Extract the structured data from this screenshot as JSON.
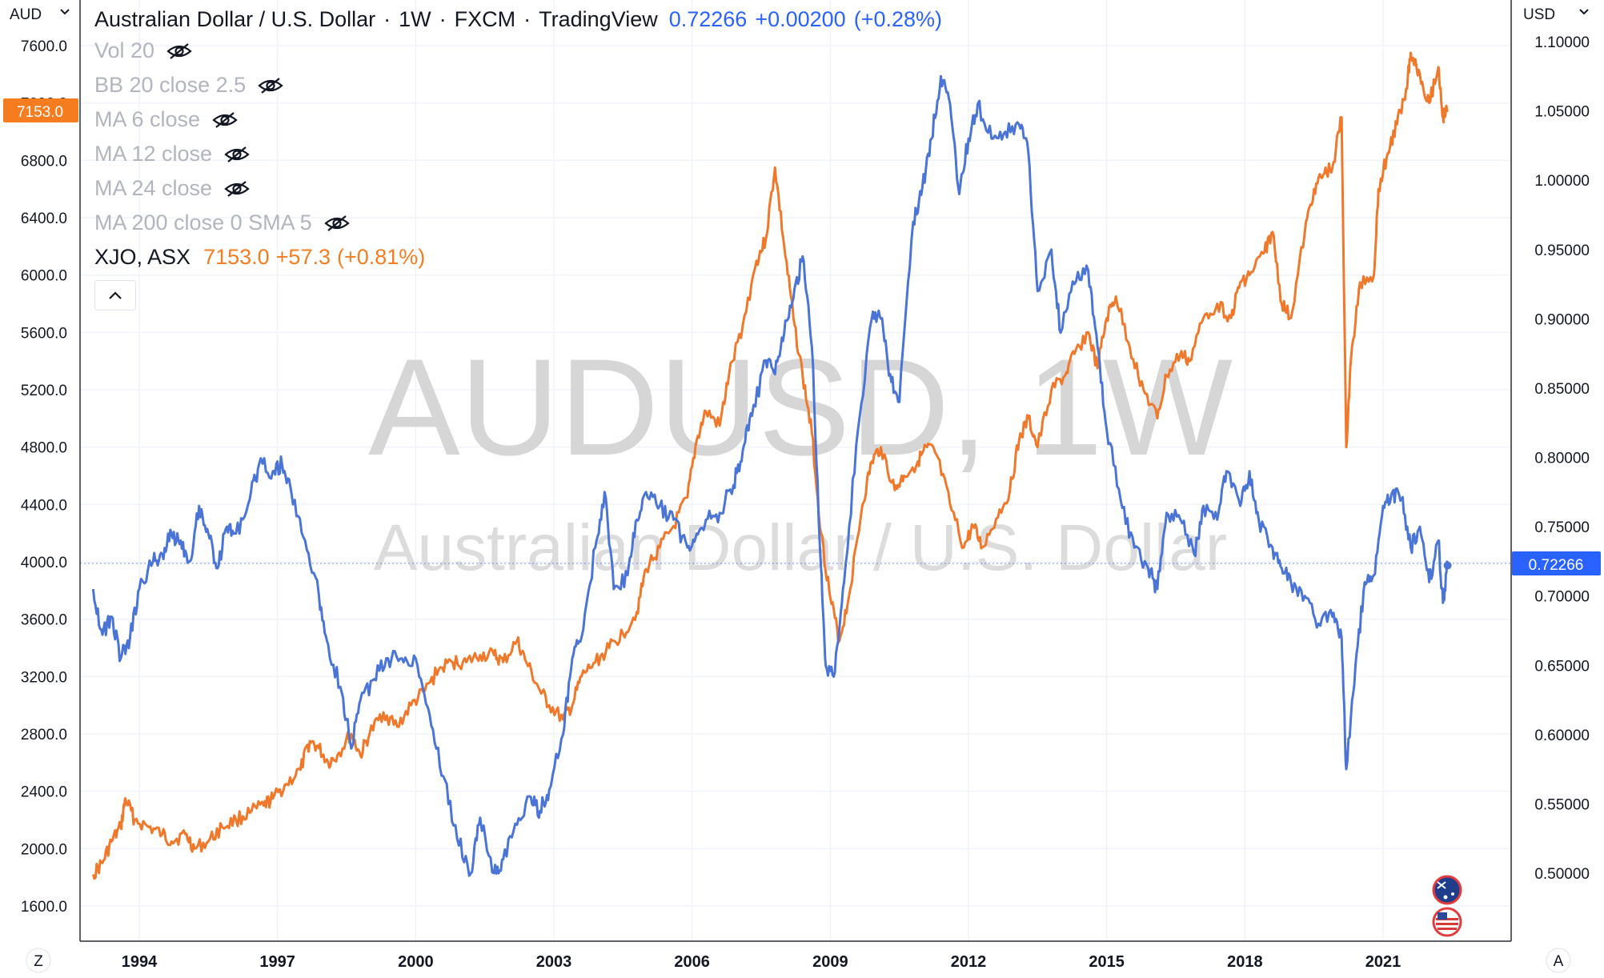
{
  "header": {
    "symbol_title": "Australian Dollar / U.S. Dollar",
    "interval": "1W",
    "exchange": "FXCM",
    "platform": "TradingView",
    "last_price": "0.72266",
    "change": "+0.00200",
    "change_pct": "(+0.28%)"
  },
  "indicators": [
    {
      "label": "Vol 20"
    },
    {
      "label": "BB 20 close 2.5"
    },
    {
      "label": "MA 6 close"
    },
    {
      "label": "MA 12 close"
    },
    {
      "label": "MA 24 close"
    },
    {
      "label": "MA 200 close 0 SMA 5"
    }
  ],
  "compare": {
    "name": "XJO, ASX",
    "value": "7153.0",
    "change": "+57.3",
    "change_pct": "(+0.81%)"
  },
  "axes": {
    "left_currency": "AUD",
    "right_currency": "USD",
    "left_badge": "7153.0",
    "right_badge": "0.72266",
    "left_corner": "Z",
    "right_corner": "A"
  },
  "watermark": {
    "line1": "AUDUSD, 1W",
    "line2": "Australian Dollar / U.S. Dollar"
  },
  "colors": {
    "audusd": "#4a74d6",
    "xjo": "#f0782a",
    "grid": "#f0f3fa",
    "badge_blue": "#2962ff",
    "badge_orange": "#f57c1f"
  },
  "chart_data": {
    "type": "line",
    "x_unit": "year",
    "x_ticks": [
      "1994",
      "1997",
      "2000",
      "2003",
      "2006",
      "2009",
      "2012",
      "2015",
      "2018",
      "2021"
    ],
    "left_axis": {
      "label": "AUD",
      "ticks": [
        1600,
        2000,
        2400,
        2800,
        3200,
        3600,
        4000,
        4400,
        4800,
        5200,
        5600,
        6000,
        6400,
        6800,
        7200,
        7600
      ],
      "range": [
        1500,
        7600
      ]
    },
    "right_axis": {
      "label": "USD",
      "ticks": [
        0.5,
        0.55,
        0.6,
        0.65,
        0.7,
        0.75,
        0.8,
        0.85,
        0.9,
        0.95,
        1.0,
        1.05,
        1.1
      ],
      "range": [
        0.468,
        1.101
      ]
    },
    "series": [
      {
        "name": "AUDUSD",
        "axis": "right",
        "points": [
          [
            1993.0,
            0.705
          ],
          [
            1993.2,
            0.672
          ],
          [
            1993.4,
            0.685
          ],
          [
            1993.6,
            0.655
          ],
          [
            1993.8,
            0.67
          ],
          [
            1994.0,
            0.705
          ],
          [
            1994.3,
            0.725
          ],
          [
            1994.5,
            0.73
          ],
          [
            1994.7,
            0.745
          ],
          [
            1994.9,
            0.74
          ],
          [
            1995.1,
            0.725
          ],
          [
            1995.3,
            0.765
          ],
          [
            1995.5,
            0.745
          ],
          [
            1995.7,
            0.72
          ],
          [
            1995.9,
            0.75
          ],
          [
            1996.1,
            0.745
          ],
          [
            1996.4,
            0.77
          ],
          [
            1996.6,
            0.795
          ],
          [
            1996.9,
            0.79
          ],
          [
            1997.1,
            0.795
          ],
          [
            1997.3,
            0.775
          ],
          [
            1997.6,
            0.74
          ],
          [
            1997.9,
            0.7
          ],
          [
            1998.1,
            0.665
          ],
          [
            1998.4,
            0.63
          ],
          [
            1998.6,
            0.59
          ],
          [
            1998.8,
            0.625
          ],
          [
            1999.1,
            0.64
          ],
          [
            1999.4,
            0.655
          ],
          [
            1999.7,
            0.655
          ],
          [
            2000.0,
            0.655
          ],
          [
            2000.3,
            0.615
          ],
          [
            2000.6,
            0.57
          ],
          [
            2000.9,
            0.525
          ],
          [
            2001.2,
            0.5
          ],
          [
            2001.4,
            0.54
          ],
          [
            2001.7,
            0.5
          ],
          [
            2001.9,
            0.51
          ],
          [
            2002.2,
            0.535
          ],
          [
            2002.5,
            0.555
          ],
          [
            2002.7,
            0.545
          ],
          [
            2002.9,
            0.56
          ],
          [
            2003.2,
            0.6
          ],
          [
            2003.4,
            0.655
          ],
          [
            2003.6,
            0.67
          ],
          [
            2003.9,
            0.735
          ],
          [
            2004.1,
            0.775
          ],
          [
            2004.3,
            0.705
          ],
          [
            2004.6,
            0.715
          ],
          [
            2004.8,
            0.755
          ],
          [
            2005.0,
            0.775
          ],
          [
            2005.3,
            0.765
          ],
          [
            2005.6,
            0.755
          ],
          [
            2005.9,
            0.735
          ],
          [
            2006.1,
            0.745
          ],
          [
            2006.3,
            0.755
          ],
          [
            2006.6,
            0.76
          ],
          [
            2006.9,
            0.78
          ],
          [
            2007.1,
            0.805
          ],
          [
            2007.3,
            0.83
          ],
          [
            2007.6,
            0.87
          ],
          [
            2007.8,
            0.86
          ],
          [
            2008.0,
            0.89
          ],
          [
            2008.2,
            0.915
          ],
          [
            2008.4,
            0.945
          ],
          [
            2008.6,
            0.88
          ],
          [
            2008.8,
            0.72
          ],
          [
            2008.9,
            0.65
          ],
          [
            2009.1,
            0.645
          ],
          [
            2009.3,
            0.71
          ],
          [
            2009.6,
            0.82
          ],
          [
            2009.9,
            0.9
          ],
          [
            2010.1,
            0.9
          ],
          [
            2010.3,
            0.86
          ],
          [
            2010.5,
            0.84
          ],
          [
            2010.8,
            0.97
          ],
          [
            2011.0,
            0.995
          ],
          [
            2011.2,
            1.03
          ],
          [
            2011.4,
            1.075
          ],
          [
            2011.6,
            1.055
          ],
          [
            2011.8,
            0.99
          ],
          [
            2012.0,
            1.03
          ],
          [
            2012.2,
            1.055
          ],
          [
            2012.5,
            1.03
          ],
          [
            2012.8,
            1.035
          ],
          [
            2013.1,
            1.04
          ],
          [
            2013.3,
            1.02
          ],
          [
            2013.5,
            0.92
          ],
          [
            2013.8,
            0.95
          ],
          [
            2014.0,
            0.89
          ],
          [
            2014.3,
            0.925
          ],
          [
            2014.6,
            0.935
          ],
          [
            2014.8,
            0.88
          ],
          [
            2015.0,
            0.82
          ],
          [
            2015.3,
            0.77
          ],
          [
            2015.6,
            0.735
          ],
          [
            2015.9,
            0.72
          ],
          [
            2016.1,
            0.705
          ],
          [
            2016.3,
            0.76
          ],
          [
            2016.6,
            0.755
          ],
          [
            2016.9,
            0.73
          ],
          [
            2017.1,
            0.765
          ],
          [
            2017.4,
            0.755
          ],
          [
            2017.6,
            0.79
          ],
          [
            2017.9,
            0.765
          ],
          [
            2018.1,
            0.79
          ],
          [
            2018.3,
            0.755
          ],
          [
            2018.6,
            0.735
          ],
          [
            2018.8,
            0.72
          ],
          [
            2019.0,
            0.71
          ],
          [
            2019.3,
            0.7
          ],
          [
            2019.6,
            0.68
          ],
          [
            2019.9,
            0.685
          ],
          [
            2020.1,
            0.67
          ],
          [
            2020.2,
            0.575
          ],
          [
            2020.4,
            0.65
          ],
          [
            2020.6,
            0.71
          ],
          [
            2020.8,
            0.715
          ],
          [
            2021.0,
            0.765
          ],
          [
            2021.2,
            0.775
          ],
          [
            2021.4,
            0.77
          ],
          [
            2021.6,
            0.735
          ],
          [
            2021.8,
            0.75
          ],
          [
            2022.0,
            0.71
          ],
          [
            2022.2,
            0.74
          ],
          [
            2022.3,
            0.695
          ],
          [
            2022.4,
            0.722
          ]
        ]
      },
      {
        "name": "XJO",
        "axis": "left",
        "points": [
          [
            1993.0,
            1820
          ],
          [
            1993.2,
            1900
          ],
          [
            1993.4,
            2050
          ],
          [
            1993.6,
            2150
          ],
          [
            1993.7,
            2350
          ],
          [
            1993.9,
            2200
          ],
          [
            1994.2,
            2150
          ],
          [
            1994.5,
            2100
          ],
          [
            1994.7,
            2050
          ],
          [
            1995.0,
            2100
          ],
          [
            1995.2,
            2000
          ],
          [
            1995.5,
            2050
          ],
          [
            1995.8,
            2150
          ],
          [
            1996.1,
            2200
          ],
          [
            1996.4,
            2250
          ],
          [
            1996.7,
            2300
          ],
          [
            1996.9,
            2350
          ],
          [
            1997.2,
            2450
          ],
          [
            1997.5,
            2550
          ],
          [
            1997.7,
            2750
          ],
          [
            1997.9,
            2700
          ],
          [
            1998.1,
            2600
          ],
          [
            1998.3,
            2650
          ],
          [
            1998.6,
            2800
          ],
          [
            1998.8,
            2650
          ],
          [
            1999.0,
            2800
          ],
          [
            1999.3,
            2950
          ],
          [
            1999.6,
            2850
          ],
          [
            1999.9,
            3000
          ],
          [
            2000.2,
            3100
          ],
          [
            2000.5,
            3250
          ],
          [
            2000.8,
            3300
          ],
          [
            2001.1,
            3300
          ],
          [
            2001.4,
            3350
          ],
          [
            2001.7,
            3350
          ],
          [
            2001.9,
            3300
          ],
          [
            2002.2,
            3450
          ],
          [
            2002.4,
            3300
          ],
          [
            2002.7,
            3100
          ],
          [
            2002.9,
            3000
          ],
          [
            2003.2,
            2900
          ],
          [
            2003.4,
            3000
          ],
          [
            2003.6,
            3200
          ],
          [
            2003.9,
            3300
          ],
          [
            2004.2,
            3400
          ],
          [
            2004.5,
            3500
          ],
          [
            2004.8,
            3650
          ],
          [
            2005.0,
            3950
          ],
          [
            2005.3,
            4100
          ],
          [
            2005.6,
            4250
          ],
          [
            2005.9,
            4450
          ],
          [
            2006.1,
            4850
          ],
          [
            2006.3,
            5050
          ],
          [
            2006.6,
            4950
          ],
          [
            2006.8,
            5300
          ],
          [
            2007.1,
            5650
          ],
          [
            2007.4,
            6100
          ],
          [
            2007.6,
            6250
          ],
          [
            2007.8,
            6750
          ],
          [
            2008.0,
            6200
          ],
          [
            2008.2,
            5700
          ],
          [
            2008.4,
            5300
          ],
          [
            2008.6,
            4900
          ],
          [
            2008.8,
            4200
          ],
          [
            2009.0,
            3750
          ],
          [
            2009.2,
            3450
          ],
          [
            2009.4,
            3750
          ],
          [
            2009.7,
            4400
          ],
          [
            2009.9,
            4700
          ],
          [
            2010.1,
            4800
          ],
          [
            2010.4,
            4500
          ],
          [
            2010.6,
            4600
          ],
          [
            2010.9,
            4700
          ],
          [
            2011.1,
            4800
          ],
          [
            2011.3,
            4750
          ],
          [
            2011.6,
            4400
          ],
          [
            2011.9,
            4100
          ],
          [
            2012.1,
            4250
          ],
          [
            2012.3,
            4100
          ],
          [
            2012.6,
            4300
          ],
          [
            2012.9,
            4500
          ],
          [
            2013.1,
            4850
          ],
          [
            2013.3,
            5000
          ],
          [
            2013.5,
            4800
          ],
          [
            2013.8,
            5200
          ],
          [
            2014.1,
            5300
          ],
          [
            2014.3,
            5450
          ],
          [
            2014.6,
            5600
          ],
          [
            2014.8,
            5350
          ],
          [
            2015.0,
            5700
          ],
          [
            2015.2,
            5850
          ],
          [
            2015.5,
            5500
          ],
          [
            2015.8,
            5200
          ],
          [
            2016.1,
            5000
          ],
          [
            2016.3,
            5300
          ],
          [
            2016.6,
            5450
          ],
          [
            2016.8,
            5400
          ],
          [
            2017.1,
            5700
          ],
          [
            2017.4,
            5800
          ],
          [
            2017.7,
            5700
          ],
          [
            2017.9,
            5950
          ],
          [
            2018.1,
            6000
          ],
          [
            2018.4,
            6150
          ],
          [
            2018.6,
            6300
          ],
          [
            2018.8,
            5800
          ],
          [
            2019.0,
            5700
          ],
          [
            2019.3,
            6300
          ],
          [
            2019.5,
            6600
          ],
          [
            2019.7,
            6700
          ],
          [
            2019.9,
            6750
          ],
          [
            2020.1,
            7100
          ],
          [
            2020.2,
            4800
          ],
          [
            2020.3,
            5400
          ],
          [
            2020.5,
            5950
          ],
          [
            2020.8,
            6000
          ],
          [
            2020.9,
            6600
          ],
          [
            2021.1,
            6850
          ],
          [
            2021.3,
            7050
          ],
          [
            2021.5,
            7300
          ],
          [
            2021.6,
            7550
          ],
          [
            2021.8,
            7400
          ],
          [
            2022.0,
            7200
          ],
          [
            2022.2,
            7450
          ],
          [
            2022.3,
            7100
          ],
          [
            2022.4,
            7153
          ]
        ]
      }
    ]
  }
}
